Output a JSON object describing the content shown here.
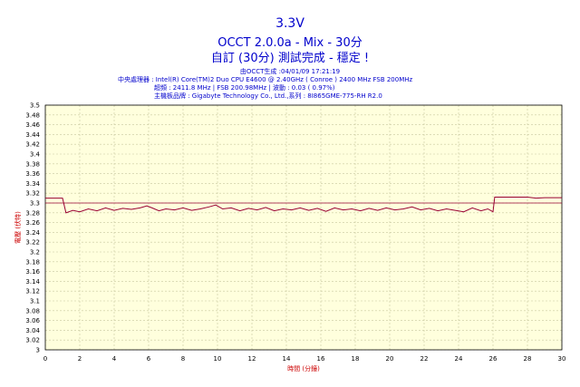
{
  "header": {
    "title": "3.3V",
    "subtitle": "OCCT 2.0.0a - Mix - 30分",
    "subtitle2": "自訂 (30分) 測試完成 - 穩定 !",
    "generated": "由OCCT生成 :04/01/09 17:21:19",
    "cpu": "中央處理器 : Intel(R) Core(TM)2 Duo CPU E4600 @ 2.40GHz ( Conroe ) 2400 MHz FSB 200MHz",
    "freq": "超頻 : 2411.8 MHz | FSB 200.98MHz | 波動 : 0.03 ( 0.97%)",
    "board": "主機板品牌 : Gigabyte Technology Co., Ltd.,系列 : 8I865GME-775-RH R2.0"
  },
  "chart_data": {
    "type": "line",
    "xlabel": "時間 (分鐘)",
    "ylabel": "電壓 (伏特)",
    "xlim": [
      0,
      30
    ],
    "ylim": [
      3.0,
      3.5
    ],
    "x_ticks": [
      "0",
      "2",
      "4",
      "6",
      "8",
      "10",
      "12",
      "14",
      "16",
      "18",
      "20",
      "22",
      "24",
      "26",
      "28",
      "30"
    ],
    "y_ticks": [
      "3",
      "3.02",
      "3.04",
      "3.06",
      "3.08",
      "3.1",
      "3.12",
      "3.14",
      "3.16",
      "3.18",
      "3.2",
      "3.22",
      "3.24",
      "3.26",
      "3.28",
      "3.3",
      "3.32",
      "3.34",
      "3.36",
      "3.38",
      "3.4",
      "3.42",
      "3.44",
      "3.46",
      "3.48",
      "3.5"
    ],
    "grid": true,
    "reference_line": 3.3,
    "series": [
      {
        "color": "#990033",
        "x": [
          0,
          1.0,
          1.2,
          1.6,
          2.0,
          2.5,
          3.0,
          3.5,
          4.0,
          4.5,
          5.0,
          5.5,
          5.9,
          6.2,
          6.6,
          7.0,
          7.5,
          8.0,
          8.5,
          9.0,
          9.5,
          9.9,
          10.3,
          10.8,
          11.3,
          11.8,
          12.3,
          12.8,
          13.3,
          13.8,
          14.3,
          14.8,
          15.3,
          15.8,
          16.3,
          16.8,
          17.3,
          17.8,
          18.3,
          18.8,
          19.3,
          19.8,
          20.3,
          20.8,
          21.3,
          21.8,
          22.3,
          22.8,
          23.3,
          23.8,
          24.3,
          24.8,
          25.3,
          25.7,
          26.0,
          26.1,
          27.0,
          28.0,
          28.5,
          29.0,
          30.0
        ],
        "y": [
          3.31,
          3.31,
          3.28,
          3.285,
          3.282,
          3.288,
          3.284,
          3.29,
          3.285,
          3.289,
          3.287,
          3.29,
          3.294,
          3.29,
          3.284,
          3.288,
          3.286,
          3.29,
          3.285,
          3.288,
          3.292,
          3.296,
          3.288,
          3.29,
          3.284,
          3.289,
          3.286,
          3.291,
          3.284,
          3.288,
          3.286,
          3.29,
          3.285,
          3.289,
          3.283,
          3.29,
          3.286,
          3.288,
          3.284,
          3.289,
          3.285,
          3.29,
          3.286,
          3.288,
          3.292,
          3.286,
          3.289,
          3.284,
          3.288,
          3.285,
          3.282,
          3.29,
          3.284,
          3.288,
          3.282,
          3.312,
          3.312,
          3.312,
          3.31,
          3.311,
          3.311
        ]
      }
    ]
  }
}
